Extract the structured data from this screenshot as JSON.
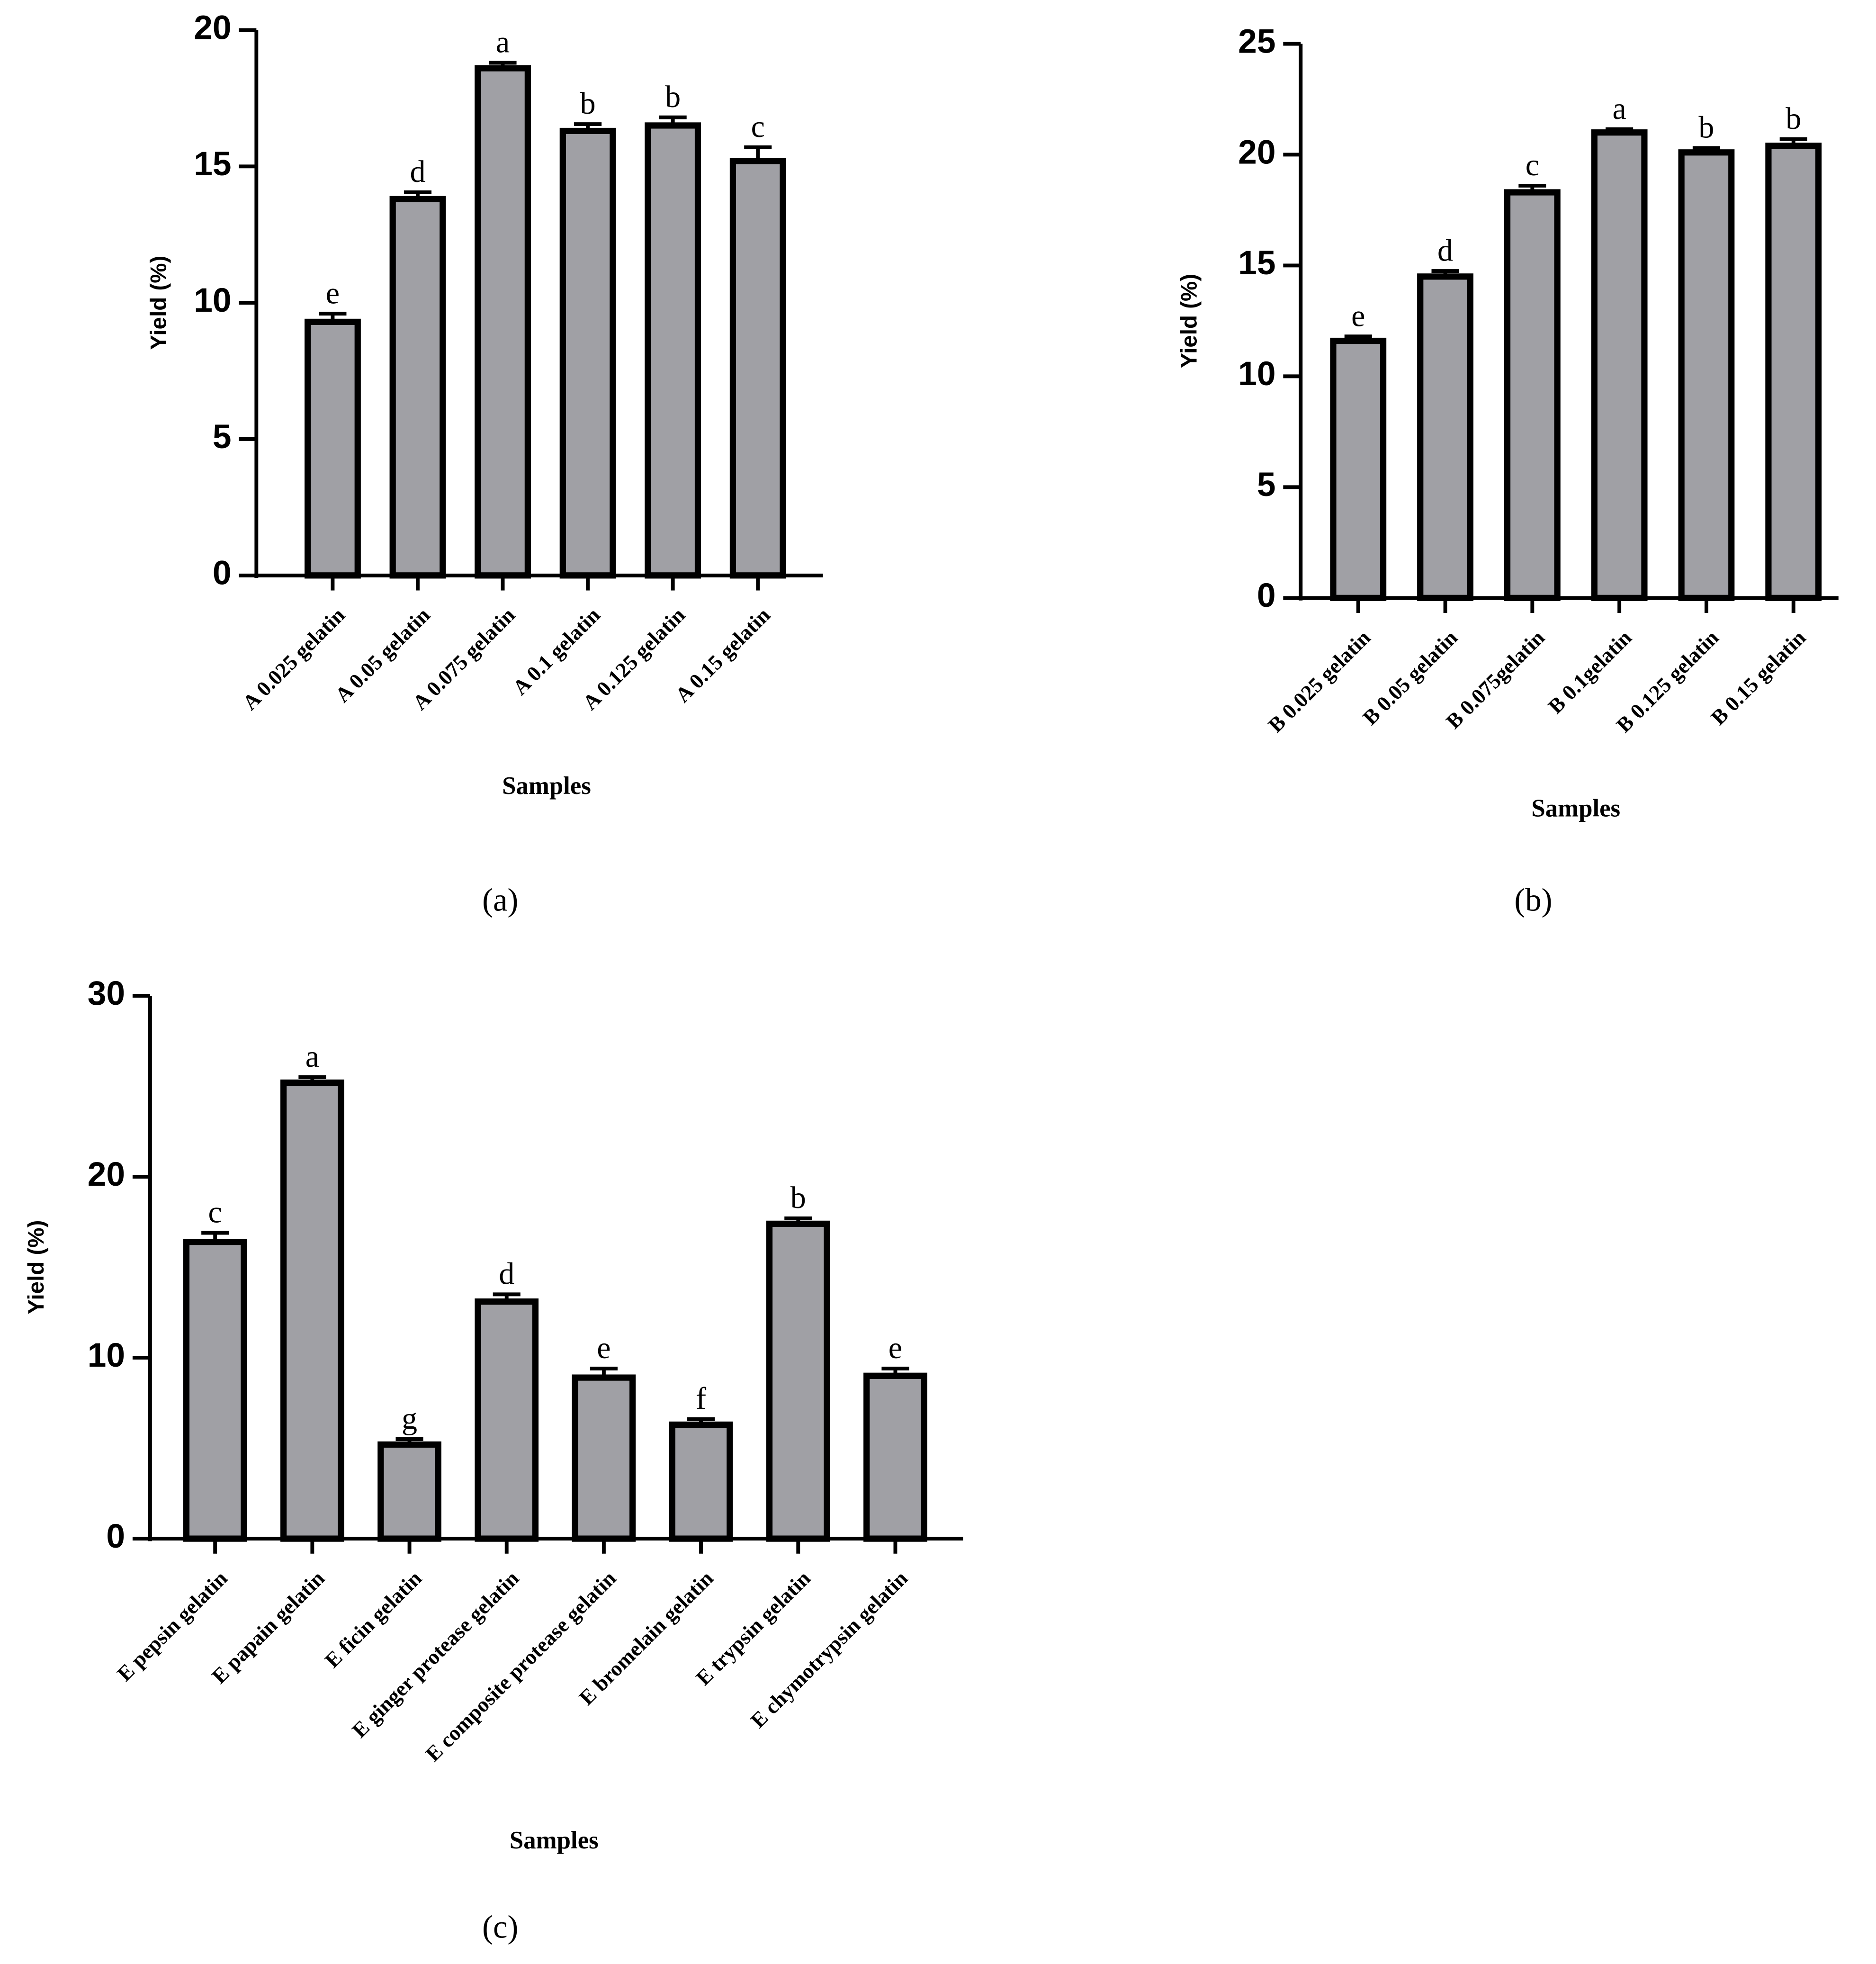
{
  "chart_data": [
    {
      "type": "bar",
      "ylabel": "Yield (%)",
      "xlabel": "Samples",
      "panel_label": "(a)",
      "color": "#a0a0a5",
      "categories": [
        "A 0.025 gelatin",
        "A 0.05 gelatin",
        "A 0.075 gelatin",
        "A 0.1 gelatin",
        "A 0.125 gelatin",
        "A 0.15 gelatin"
      ],
      "values": [
        9.3,
        13.8,
        18.6,
        16.3,
        16.5,
        15.2
      ],
      "errors": [
        0.3,
        0.25,
        0.2,
        0.25,
        0.3,
        0.5
      ],
      "group_labels": [
        "e",
        "d",
        "a",
        "b",
        "b",
        "c"
      ],
      "ylim": [
        0,
        20
      ],
      "yticks": [
        0,
        5,
        10,
        15,
        20
      ]
    },
    {
      "type": "bar",
      "ylabel": "Yield (%)",
      "xlabel": "Samples",
      "panel_label": "(b)",
      "color": "#a0a0a5",
      "categories": [
        "B 0.025 gelatin",
        "B 0.05 gelatin",
        "B 0.075gelatin",
        "B 0.1gelatin",
        "B 0.125 gelatin",
        "B 0.15 gelatin"
      ],
      "values": [
        11.6,
        14.5,
        18.3,
        21.0,
        20.1,
        20.4
      ],
      "errors": [
        0.2,
        0.25,
        0.3,
        0.15,
        0.2,
        0.3
      ],
      "group_labels": [
        "e",
        "d",
        "c",
        "a",
        "b",
        "b"
      ],
      "ylim": [
        0,
        25
      ],
      "yticks": [
        0,
        5,
        10,
        15,
        20,
        25
      ]
    },
    {
      "type": "bar",
      "ylabel": "Yield (%)",
      "xlabel": "Samples",
      "panel_label": "(c)",
      "color": "#a0a0a5",
      "categories": [
        "E pepsin gelatin",
        "E papain gelatin",
        "E ficin gelatin",
        "E ginger protease gelatin",
        "E composite protease  gelatin",
        "E bromelain gelatin",
        "E trypsin gelatin",
        "E chymotrypsin gelatin"
      ],
      "values": [
        16.4,
        25.2,
        5.2,
        13.1,
        8.9,
        6.3,
        17.4,
        9.0
      ],
      "errors": [
        0.5,
        0.3,
        0.3,
        0.4,
        0.5,
        0.3,
        0.3,
        0.4
      ],
      "group_labels": [
        "c",
        "a",
        "g",
        "d",
        "e",
        "f",
        "b",
        "e"
      ],
      "ylim": [
        0,
        30
      ],
      "yticks": [
        0,
        10,
        20,
        30
      ]
    }
  ]
}
